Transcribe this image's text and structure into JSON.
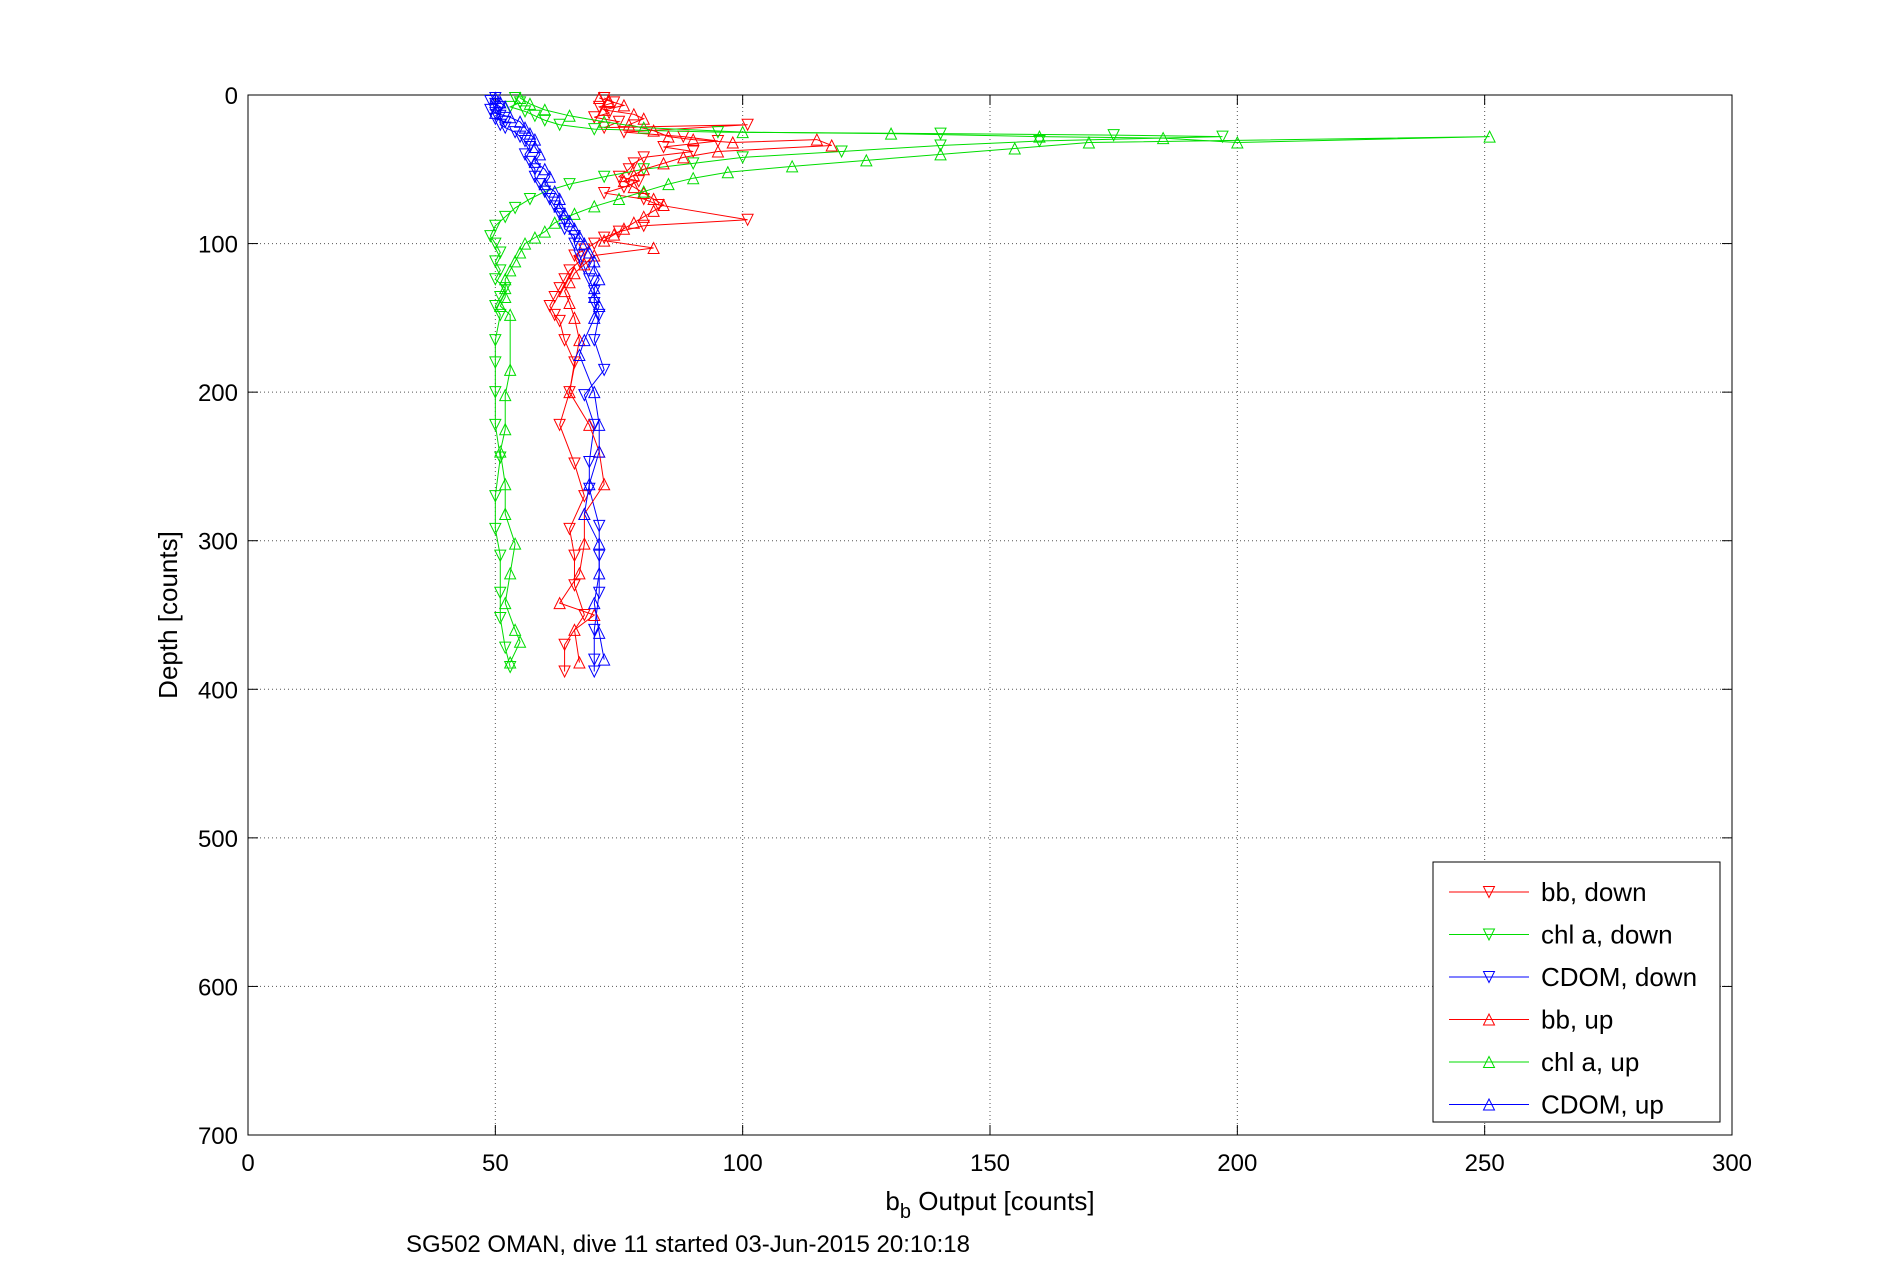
{
  "chart_data": {
    "type": "scatter",
    "xlabel_main": "b",
    "xlabel_sub": "b",
    "xlabel_rest": " Output [counts]",
    "ylabel": "Depth [counts]",
    "caption": "SG502 OMAN, dive 11 started 03-Jun-2015 20:10:18",
    "xlim": [
      0,
      300
    ],
    "ylim": [
      0,
      700
    ],
    "y_reversed": true,
    "grid": true,
    "legend_position": "bottom-right",
    "x_ticks": [
      "0",
      "50",
      "100",
      "150",
      "200",
      "250",
      "300"
    ],
    "y_ticks": [
      "0",
      "100",
      "200",
      "300",
      "400",
      "500",
      "600",
      "700"
    ],
    "series": [
      {
        "name": "bb, down",
        "color": "#ff0000",
        "marker": "down",
        "points": [
          [
            72,
            2
          ],
          [
            74,
            5
          ],
          [
            71,
            8
          ],
          [
            73,
            12
          ],
          [
            70,
            15
          ],
          [
            75,
            18
          ],
          [
            72,
            22
          ],
          [
            101,
            20
          ],
          [
            76,
            25
          ],
          [
            88,
            28
          ],
          [
            95,
            31
          ],
          [
            84,
            35
          ],
          [
            90,
            38
          ],
          [
            80,
            42
          ],
          [
            78,
            46
          ],
          [
            77,
            50
          ],
          [
            75,
            55
          ],
          [
            79,
            58
          ],
          [
            76,
            62
          ],
          [
            72,
            66
          ],
          [
            80,
            70
          ],
          [
            83,
            74
          ],
          [
            101,
            84
          ],
          [
            80,
            88
          ],
          [
            75,
            92
          ],
          [
            72,
            96
          ],
          [
            70,
            100
          ],
          [
            68,
            104
          ],
          [
            66,
            108
          ],
          [
            67,
            112
          ],
          [
            65,
            118
          ],
          [
            64,
            124
          ],
          [
            63,
            130
          ],
          [
            62,
            136
          ],
          [
            61,
            142
          ],
          [
            62,
            148
          ],
          [
            63,
            152
          ],
          [
            64,
            165
          ],
          [
            66,
            180
          ],
          [
            65,
            200
          ],
          [
            63,
            222
          ],
          [
            66,
            248
          ],
          [
            68,
            270
          ],
          [
            65,
            292
          ],
          [
            66,
            310
          ],
          [
            66,
            330
          ],
          [
            68,
            350
          ],
          [
            64,
            370
          ],
          [
            64,
            388
          ]
        ]
      },
      {
        "name": "chl a, down",
        "color": "#00dd00",
        "marker": "down",
        "points": [
          [
            54,
            2
          ],
          [
            55,
            5
          ],
          [
            53,
            8
          ],
          [
            56,
            11
          ],
          [
            58,
            14
          ],
          [
            60,
            17
          ],
          [
            63,
            20
          ],
          [
            70,
            23
          ],
          [
            95,
            25
          ],
          [
            140,
            26
          ],
          [
            175,
            27
          ],
          [
            197,
            28
          ],
          [
            160,
            31
          ],
          [
            140,
            34
          ],
          [
            120,
            38
          ],
          [
            100,
            42
          ],
          [
            90,
            46
          ],
          [
            80,
            50
          ],
          [
            72,
            55
          ],
          [
            65,
            60
          ],
          [
            60,
            65
          ],
          [
            57,
            70
          ],
          [
            54,
            76
          ],
          [
            52,
            82
          ],
          [
            50,
            88
          ],
          [
            49,
            95
          ],
          [
            50,
            100
          ],
          [
            51,
            106
          ],
          [
            50,
            112
          ],
          [
            51,
            118
          ],
          [
            50,
            124
          ],
          [
            52,
            130
          ],
          [
            51,
            136
          ],
          [
            50,
            142
          ],
          [
            51,
            148
          ],
          [
            50,
            165
          ],
          [
            50,
            180
          ],
          [
            50,
            200
          ],
          [
            50,
            222
          ],
          [
            51,
            244
          ],
          [
            50,
            270
          ],
          [
            50,
            292
          ],
          [
            51,
            310
          ],
          [
            51,
            335
          ],
          [
            51,
            352
          ],
          [
            52,
            372
          ],
          [
            53,
            385
          ]
        ]
      },
      {
        "name": "CDOM, down",
        "color": "#0000ff",
        "marker": "down",
        "points": [
          [
            50,
            2
          ],
          [
            49,
            4
          ],
          [
            50,
            6
          ],
          [
            51,
            8
          ],
          [
            49,
            10
          ],
          [
            50,
            12
          ],
          [
            51,
            14
          ],
          [
            50,
            16
          ],
          [
            52,
            18
          ],
          [
            51,
            20
          ],
          [
            52,
            22
          ],
          [
            54,
            25
          ],
          [
            55,
            28
          ],
          [
            56,
            31
          ],
          [
            57,
            35
          ],
          [
            56,
            40
          ],
          [
            57,
            45
          ],
          [
            58,
            50
          ],
          [
            58,
            55
          ],
          [
            59,
            60
          ],
          [
            60,
            65
          ],
          [
            61,
            70
          ],
          [
            62,
            75
          ],
          [
            63,
            80
          ],
          [
            64,
            85
          ],
          [
            64,
            90
          ],
          [
            66,
            95
          ],
          [
            66,
            100
          ],
          [
            67,
            108
          ],
          [
            68,
            116
          ],
          [
            69,
            124
          ],
          [
            70,
            132
          ],
          [
            70,
            140
          ],
          [
            71,
            148
          ],
          [
            70,
            165
          ],
          [
            72,
            185
          ],
          [
            68,
            202
          ],
          [
            70,
            222
          ],
          [
            69,
            247
          ],
          [
            69,
            265
          ],
          [
            71,
            290
          ],
          [
            71,
            310
          ],
          [
            71,
            335
          ],
          [
            70,
            360
          ],
          [
            70,
            380
          ],
          [
            70,
            388
          ]
        ]
      },
      {
        "name": "bb, up",
        "color": "#ff0000",
        "marker": "up",
        "points": [
          [
            71,
            2
          ],
          [
            73,
            4
          ],
          [
            76,
            7
          ],
          [
            72,
            10
          ],
          [
            78,
            13
          ],
          [
            80,
            16
          ],
          [
            77,
            20
          ],
          [
            82,
            24
          ],
          [
            85,
            28
          ],
          [
            90,
            30
          ],
          [
            98,
            32
          ],
          [
            115,
            30
          ],
          [
            118,
            34
          ],
          [
            95,
            38
          ],
          [
            88,
            42
          ],
          [
            84,
            46
          ],
          [
            80,
            50
          ],
          [
            78,
            54
          ],
          [
            76,
            58
          ],
          [
            78,
            62
          ],
          [
            80,
            66
          ],
          [
            82,
            70
          ],
          [
            84,
            74
          ],
          [
            82,
            78
          ],
          [
            80,
            82
          ],
          [
            78,
            86
          ],
          [
            76,
            90
          ],
          [
            74,
            94
          ],
          [
            72,
            98
          ],
          [
            82,
            103
          ],
          [
            70,
            108
          ],
          [
            68,
            114
          ],
          [
            66,
            120
          ],
          [
            65,
            126
          ],
          [
            64,
            132
          ],
          [
            65,
            140
          ],
          [
            66,
            150
          ],
          [
            67,
            165
          ],
          [
            65,
            200
          ],
          [
            69,
            222
          ],
          [
            71,
            240
          ],
          [
            72,
            262
          ],
          [
            68,
            282
          ],
          [
            68,
            302
          ],
          [
            67,
            322
          ],
          [
            63,
            342
          ],
          [
            70,
            350
          ],
          [
            66,
            360
          ],
          [
            67,
            382
          ]
        ]
      },
      {
        "name": "chl a, up",
        "color": "#00dd00",
        "marker": "up",
        "points": [
          [
            55,
            2
          ],
          [
            57,
            6
          ],
          [
            60,
            10
          ],
          [
            65,
            14
          ],
          [
            72,
            18
          ],
          [
            80,
            22
          ],
          [
            100,
            25
          ],
          [
            130,
            26
          ],
          [
            160,
            28
          ],
          [
            185,
            29
          ],
          [
            200,
            32
          ],
          [
            251,
            28
          ],
          [
            170,
            32
          ],
          [
            155,
            36
          ],
          [
            140,
            40
          ],
          [
            125,
            44
          ],
          [
            110,
            48
          ],
          [
            97,
            52
          ],
          [
            90,
            56
          ],
          [
            85,
            60
          ],
          [
            80,
            65
          ],
          [
            75,
            70
          ],
          [
            70,
            75
          ],
          [
            66,
            80
          ],
          [
            62,
            86
          ],
          [
            60,
            92
          ],
          [
            58,
            96
          ],
          [
            56,
            100
          ],
          [
            55,
            106
          ],
          [
            54,
            112
          ],
          [
            53,
            118
          ],
          [
            52,
            124
          ],
          [
            52,
            130
          ],
          [
            52,
            136
          ],
          [
            51,
            142
          ],
          [
            53,
            148
          ],
          [
            53,
            185
          ],
          [
            52,
            202
          ],
          [
            52,
            225
          ],
          [
            51,
            240
          ],
          [
            52,
            262
          ],
          [
            52,
            282
          ],
          [
            54,
            302
          ],
          [
            53,
            322
          ],
          [
            52,
            342
          ],
          [
            54,
            360
          ],
          [
            55,
            368
          ],
          [
            53,
            382
          ]
        ]
      },
      {
        "name": "CDOM, up",
        "color": "#0000ff",
        "marker": "up",
        "points": [
          [
            50,
            2
          ],
          [
            51,
            5
          ],
          [
            52,
            8
          ],
          [
            50,
            12
          ],
          [
            53,
            15
          ],
          [
            55,
            18
          ],
          [
            56,
            22
          ],
          [
            57,
            26
          ],
          [
            58,
            30
          ],
          [
            58,
            35
          ],
          [
            59,
            40
          ],
          [
            58,
            45
          ],
          [
            60,
            50
          ],
          [
            61,
            55
          ],
          [
            60,
            60
          ],
          [
            62,
            65
          ],
          [
            63,
            70
          ],
          [
            63,
            75
          ],
          [
            64,
            80
          ],
          [
            65,
            85
          ],
          [
            66,
            90
          ],
          [
            67,
            95
          ],
          [
            68,
            100
          ],
          [
            69,
            106
          ],
          [
            70,
            112
          ],
          [
            70,
            118
          ],
          [
            71,
            124
          ],
          [
            70,
            130
          ],
          [
            70,
            136
          ],
          [
            71,
            142
          ],
          [
            70,
            150
          ],
          [
            68,
            165
          ],
          [
            67,
            175
          ],
          [
            70,
            200
          ],
          [
            71,
            222
          ],
          [
            71,
            240
          ],
          [
            69,
            262
          ],
          [
            68,
            282
          ],
          [
            71,
            302
          ],
          [
            71,
            322
          ],
          [
            70,
            342
          ],
          [
            71,
            362
          ],
          [
            72,
            380
          ]
        ]
      }
    ]
  }
}
